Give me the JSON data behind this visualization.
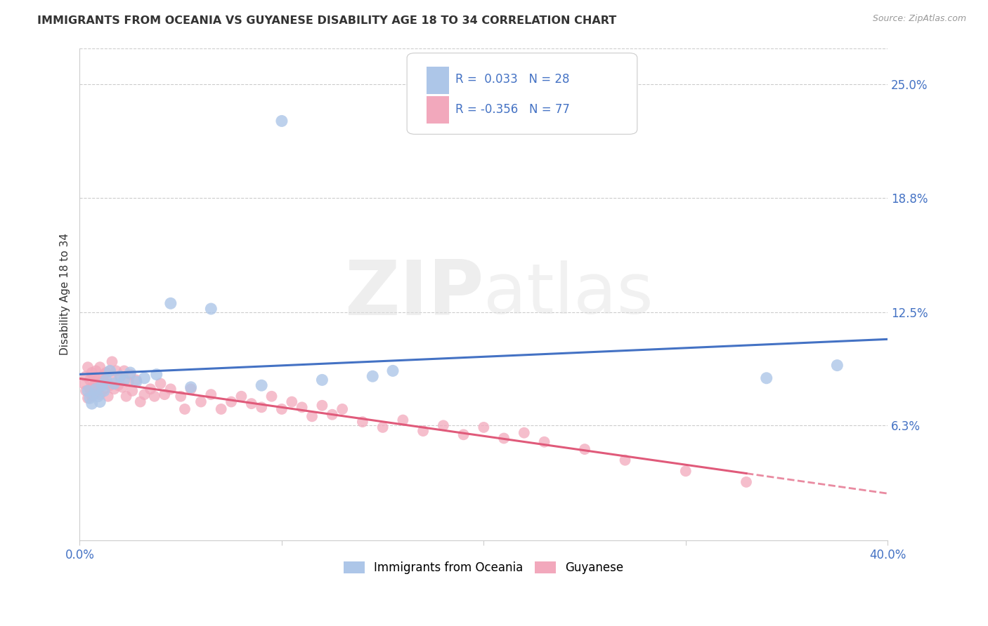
{
  "title": "IMMIGRANTS FROM OCEANIA VS GUYANESE DISABILITY AGE 18 TO 34 CORRELATION CHART",
  "source": "Source: ZipAtlas.com",
  "ylabel": "Disability Age 18 to 34",
  "ytick_labels": [
    "25.0%",
    "18.8%",
    "12.5%",
    "6.3%"
  ],
  "ytick_values": [
    0.25,
    0.188,
    0.125,
    0.063
  ],
  "xlim": [
    0.0,
    0.4
  ],
  "ylim": [
    0.0,
    0.27
  ],
  "legend_label1": "Immigrants from Oceania",
  "legend_label2": "Guyanese",
  "r1": "0.033",
  "n1": "28",
  "r2": "-0.356",
  "n2": "77",
  "color1": "#adc6e8",
  "color2": "#f2a8bc",
  "line_color1": "#4472c4",
  "line_color2": "#e05a7a",
  "watermark_zip": "ZIP",
  "watermark_atlas": "atlas",
  "oceania_x": [
    0.004,
    0.005,
    0.006,
    0.007,
    0.008,
    0.009,
    0.01,
    0.011,
    0.012,
    0.013,
    0.015,
    0.017,
    0.02,
    0.022,
    0.025,
    0.028,
    0.032,
    0.038,
    0.045,
    0.055,
    0.065,
    0.09,
    0.1,
    0.12,
    0.145,
    0.155,
    0.34,
    0.375
  ],
  "oceania_y": [
    0.082,
    0.078,
    0.075,
    0.08,
    0.083,
    0.079,
    0.076,
    0.085,
    0.082,
    0.088,
    0.093,
    0.086,
    0.09,
    0.088,
    0.092,
    0.087,
    0.089,
    0.091,
    0.13,
    0.084,
    0.127,
    0.085,
    0.23,
    0.088,
    0.09,
    0.093,
    0.089,
    0.096
  ],
  "guyanese_x": [
    0.002,
    0.003,
    0.003,
    0.004,
    0.004,
    0.005,
    0.005,
    0.006,
    0.006,
    0.007,
    0.007,
    0.008,
    0.008,
    0.009,
    0.009,
    0.01,
    0.01,
    0.011,
    0.012,
    0.012,
    0.013,
    0.013,
    0.014,
    0.015,
    0.015,
    0.016,
    0.016,
    0.017,
    0.018,
    0.019,
    0.02,
    0.021,
    0.022,
    0.023,
    0.024,
    0.025,
    0.026,
    0.028,
    0.03,
    0.032,
    0.035,
    0.037,
    0.04,
    0.042,
    0.045,
    0.05,
    0.052,
    0.055,
    0.06,
    0.065,
    0.07,
    0.075,
    0.08,
    0.085,
    0.09,
    0.095,
    0.1,
    0.105,
    0.11,
    0.115,
    0.12,
    0.125,
    0.13,
    0.14,
    0.15,
    0.16,
    0.17,
    0.18,
    0.19,
    0.2,
    0.21,
    0.22,
    0.23,
    0.25,
    0.27,
    0.3,
    0.33
  ],
  "guyanese_y": [
    0.086,
    0.082,
    0.09,
    0.078,
    0.095,
    0.083,
    0.088,
    0.092,
    0.079,
    0.085,
    0.09,
    0.087,
    0.093,
    0.082,
    0.088,
    0.08,
    0.095,
    0.087,
    0.083,
    0.091,
    0.086,
    0.092,
    0.079,
    0.093,
    0.085,
    0.088,
    0.098,
    0.083,
    0.093,
    0.085,
    0.09,
    0.084,
    0.093,
    0.079,
    0.087,
    0.091,
    0.082,
    0.088,
    0.076,
    0.08,
    0.083,
    0.079,
    0.086,
    0.08,
    0.083,
    0.079,
    0.072,
    0.083,
    0.076,
    0.08,
    0.072,
    0.076,
    0.079,
    0.075,
    0.073,
    0.079,
    0.072,
    0.076,
    0.073,
    0.068,
    0.074,
    0.069,
    0.072,
    0.065,
    0.062,
    0.066,
    0.06,
    0.063,
    0.058,
    0.062,
    0.056,
    0.059,
    0.054,
    0.05,
    0.044,
    0.038,
    0.032
  ],
  "bg_color": "#ffffff",
  "grid_color": "#cccccc",
  "spine_color": "#cccccc",
  "tick_label_color": "#4472c4",
  "title_color": "#333333",
  "source_color": "#999999",
  "ylabel_color": "#333333"
}
